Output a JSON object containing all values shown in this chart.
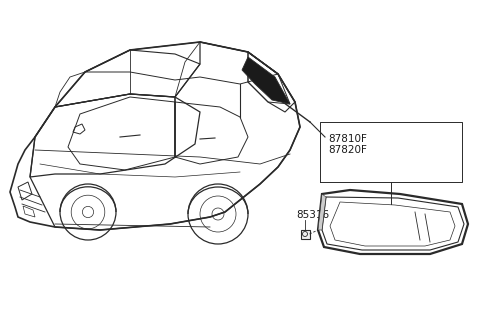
{
  "background_color": "#ffffff",
  "line_color": "#2a2a2a",
  "text_color": "#1a1a1a",
  "font_size_label": 7.5,
  "label_87810F": "87810F",
  "label_87820F": "87820F",
  "label_85316": "85316",
  "car_scale": 1.0
}
